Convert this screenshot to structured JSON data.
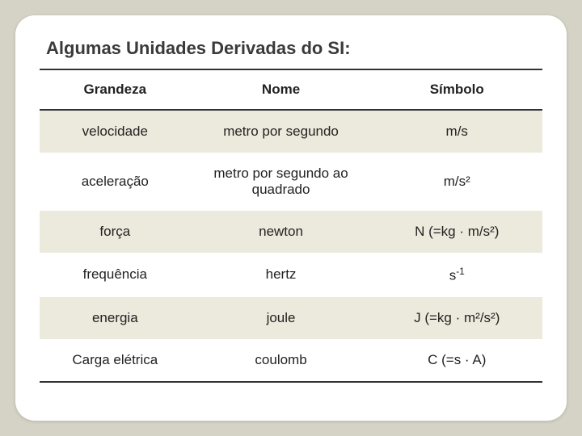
{
  "title": "Algumas Unidades Derivadas do SI:",
  "table": {
    "columns": [
      "Grandeza",
      "Nome",
      "Símbolo"
    ],
    "column_widths": [
      "30%",
      "36%",
      "34%"
    ],
    "rows": [
      {
        "grandeza": "velocidade",
        "nome": "metro por segundo",
        "simbolo": "m/s",
        "alt": true
      },
      {
        "grandeza": "aceleração",
        "nome": "metro por segundo ao quadrado",
        "simbolo": "m/s²",
        "alt": false
      },
      {
        "grandeza": "força",
        "nome": "newton",
        "simbolo": "N (=kg · m/s²)",
        "alt": true
      },
      {
        "grandeza": "frequência",
        "nome": "hertz",
        "simbolo_html": "s<sup>-1</sup>",
        "alt": false
      },
      {
        "grandeza": "energia",
        "nome": "joule",
        "simbolo": "J (=kg · m²/s²)",
        "alt": true
      },
      {
        "grandeza": "Carga elétrica",
        "nome": "coulomb",
        "simbolo": "C (=s · A)",
        "alt": false
      }
    ],
    "header_border_color": "#333",
    "alt_row_bg": "#eceadd",
    "text_color": "#222",
    "title_fontsize": 22,
    "cell_fontsize": 17
  },
  "card": {
    "background_color": "#ffffff",
    "border_radius": 24
  },
  "page": {
    "background_color": "#d5d3c5"
  }
}
